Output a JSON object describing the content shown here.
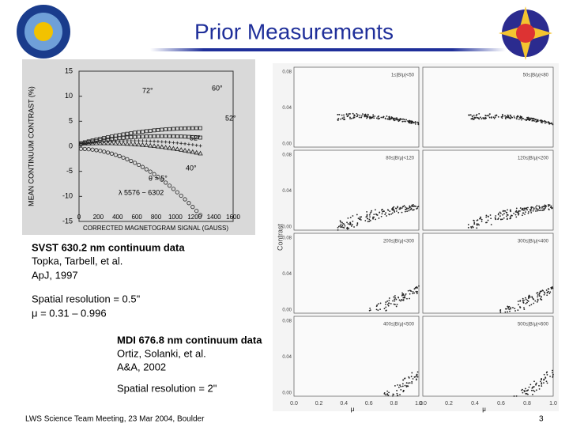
{
  "title": "Prior Measurements",
  "left_plot": {
    "y_label": "MEAN CONTINUUM CONTRAST (%)",
    "x_label": "CORRECTED MAGNETOGRAM SIGNAL (GAUSS)",
    "yticks": [
      "15",
      "10",
      "5",
      "0",
      "-5",
      "-10",
      "-15"
    ],
    "xticks": [
      "0",
      "200",
      "400",
      "600",
      "800",
      "1000",
      "1200",
      "1400",
      "1600"
    ],
    "annotations": [
      "72°",
      "60°",
      "52°",
      "52°",
      "40°",
      "θ = 5°",
      "λ 5576 − 6302"
    ]
  },
  "right_plot": {
    "y_label": "Contrast",
    "x_label": "μ",
    "yticks": [
      "0.08",
      "0.04",
      "0.00"
    ],
    "xticks": [
      "0.0",
      "0.2",
      "0.4",
      "0.6",
      "0.8",
      "1.0"
    ],
    "panels": [
      "1≤|B/μ|<50",
      "50≤|B/μ|<80",
      "80≤|B/μ|<120",
      "120≤|B/μ|<200",
      "200≤|B/μ|<300",
      "300≤|B/μ|<400",
      "400≤|B/μ|<500",
      "500≤|B/μ|<600"
    ]
  },
  "svst": {
    "heading": "SVST 630.2 nm continuum data",
    "authors": "Topka, Tarbell, et al.",
    "ref": "ApJ, 1997",
    "resolution": "Spatial resolution = 0.5\"",
    "mu": "μ  = 0.31 – 0.996"
  },
  "mdi": {
    "heading": "MDI 676.8 nm continuum data",
    "authors": "Ortiz, Solanki, et al.",
    "ref": "A&A, 2002",
    "resolution": "Spatial resolution = 2\""
  },
  "footer": "LWS Science Team Meeting, 23 Mar 2004, Boulder",
  "page_number": "3"
}
